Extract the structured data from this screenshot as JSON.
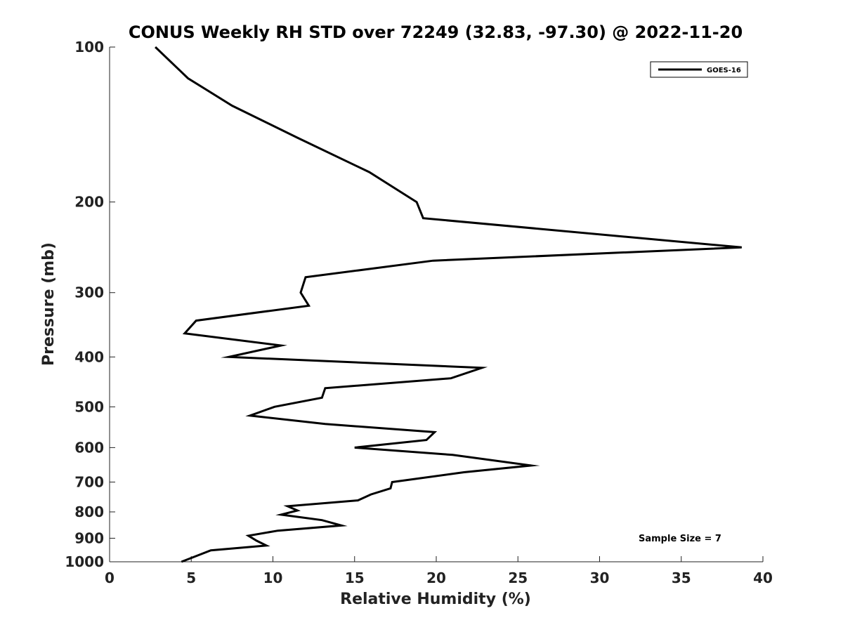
{
  "chart_data": {
    "type": "line",
    "title": "CONUS Weekly RH STD over 72249 (32.83, -97.30) @ 2022-11-20",
    "xlabel": "Relative Humidity (%)",
    "ylabel": "Pressure (mb)",
    "xlim": [
      0,
      40
    ],
    "ylim": [
      100,
      1000
    ],
    "y_scale": "log",
    "y_reversed": true,
    "grid": false,
    "legend_position": "top-right",
    "x_ticks": [
      0,
      5,
      10,
      15,
      20,
      25,
      30,
      35,
      40
    ],
    "y_ticks": [
      100,
      200,
      300,
      400,
      500,
      600,
      700,
      800,
      900,
      1000
    ],
    "series": [
      {
        "name": "GOES-16",
        "color": "#000000",
        "x": [
          2.8,
          4.8,
          7.5,
          11.5,
          15.9,
          18.8,
          19.2,
          38.7,
          19.8,
          12.0,
          11.7,
          12.2,
          5.3,
          4.6,
          10.5,
          7.3,
          22.8,
          20.9,
          13.2,
          13.0,
          10.1,
          8.6,
          13.2,
          19.9,
          19.4,
          15.0,
          21.0,
          25.8,
          21.7,
          17.3,
          17.2,
          16.0,
          15.2,
          10.9,
          11.5,
          10.5,
          13.0,
          14.2,
          10.3,
          8.5,
          9.0,
          9.6,
          6.2,
          4.4
        ],
        "y": [
          100,
          115,
          130,
          150,
          175,
          200,
          215,
          245,
          260,
          280,
          300,
          318,
          340,
          360,
          380,
          400,
          420,
          440,
          460,
          480,
          500,
          520,
          540,
          560,
          580,
          600,
          620,
          650,
          670,
          700,
          720,
          740,
          760,
          780,
          795,
          810,
          830,
          850,
          870,
          890,
          910,
          930,
          950,
          1000
        ]
      }
    ],
    "annotation": "Sample Size = 7"
  }
}
